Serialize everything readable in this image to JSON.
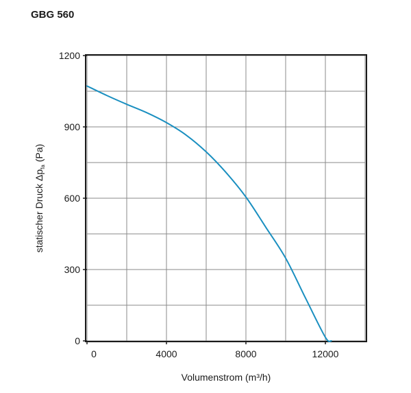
{
  "chart_data": {
    "type": "line",
    "title": "GBG 560",
    "xlabel": "Volumenstrom (m³/h)",
    "ylabel": {
      "main": "statischer Druck Δp",
      "subscript": "fa",
      "unit": " (Pa)"
    },
    "xlim": [
      0,
      14000
    ],
    "ylim": [
      0,
      1200
    ],
    "xticks": [
      0,
      4000,
      8000,
      12000
    ],
    "xtick_labels": [
      "0",
      "4000",
      "8000",
      "12000"
    ],
    "yticks": [
      0,
      300,
      600,
      900,
      1200
    ],
    "ytick_labels": [
      "0",
      "300",
      "600",
      "900",
      "1200"
    ],
    "x_grid": [
      0,
      2000,
      4000,
      6000,
      8000,
      10000,
      12000,
      14000
    ],
    "y_grid": [
      0,
      150,
      300,
      450,
      600,
      750,
      900,
      1050,
      1200
    ],
    "grid": true,
    "line_color": "#1a8fc0",
    "series": [
      {
        "x": [
          0,
          1000,
          2000,
          3000,
          4000,
          5000,
          6000,
          7000,
          8000,
          9000,
          10000,
          11000,
          12000,
          12300
        ],
        "y": [
          1072,
          1032,
          995,
          960,
          918,
          865,
          795,
          708,
          605,
          478,
          348,
          180,
          15,
          0
        ]
      }
    ]
  }
}
